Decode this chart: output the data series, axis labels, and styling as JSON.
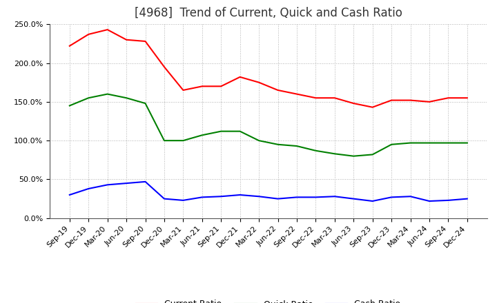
{
  "title": "[4968]  Trend of Current, Quick and Cash Ratio",
  "x_labels": [
    "Sep-19",
    "Dec-19",
    "Mar-20",
    "Jun-20",
    "Sep-20",
    "Dec-20",
    "Mar-21",
    "Jun-21",
    "Sep-21",
    "Dec-21",
    "Mar-22",
    "Jun-22",
    "Sep-22",
    "Dec-22",
    "Mar-23",
    "Jun-23",
    "Sep-23",
    "Dec-23",
    "Mar-24",
    "Jun-24",
    "Sep-24",
    "Dec-24"
  ],
  "current_ratio": [
    222,
    237,
    243,
    230,
    228,
    195,
    165,
    170,
    170,
    182,
    175,
    165,
    160,
    155,
    155,
    148,
    143,
    152,
    152,
    150,
    155,
    155
  ],
  "quick_ratio": [
    145,
    155,
    160,
    155,
    148,
    100,
    100,
    107,
    112,
    112,
    100,
    95,
    93,
    87,
    83,
    80,
    82,
    95,
    97,
    97,
    97,
    97
  ],
  "cash_ratio": [
    30,
    38,
    43,
    45,
    47,
    25,
    23,
    27,
    28,
    30,
    28,
    25,
    27,
    27,
    28,
    25,
    22,
    27,
    28,
    22,
    23,
    25
  ],
  "ylim": [
    0,
    250
  ],
  "yticks": [
    0,
    50,
    100,
    150,
    200,
    250
  ],
  "line_colors": {
    "current": "#ff0000",
    "quick": "#008000",
    "cash": "#0000ff"
  },
  "legend_labels": [
    "Current Ratio",
    "Quick Ratio",
    "Cash Ratio"
  ],
  "grid_color": "#b0b0b0",
  "background_color": "#ffffff",
  "title_fontsize": 12,
  "tick_fontsize": 8,
  "legend_fontsize": 9
}
